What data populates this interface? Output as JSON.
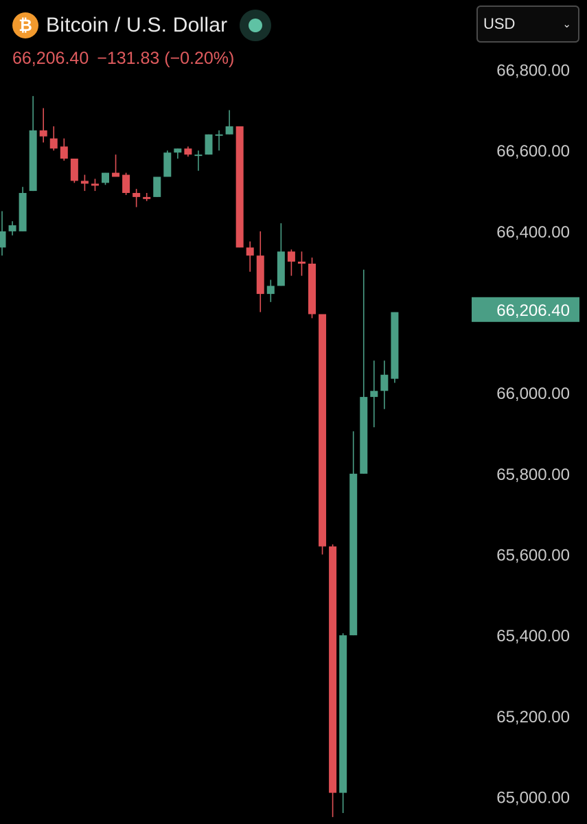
{
  "header": {
    "coin_icon_glyph": "₿",
    "title": "Bitcoin / U.S. Dollar",
    "price": "66,206.40",
    "change": "−131.83 (−0.20%)",
    "status_color": "#5fc2a4",
    "coin_color": "#f29a2e"
  },
  "currency_select": {
    "value": "USD",
    "icon": "chevron-down-icon"
  },
  "price_label": "66,206.40",
  "colors": {
    "up": "#4a9e85",
    "down": "#e05055",
    "last_price_bg": "#4a9e85"
  },
  "chart_data": {
    "type": "candlestick",
    "y_ticks": [
      "66,800.00",
      "66,600.00",
      "66,400.00",
      "66,200.00",
      "66,000.00",
      "65,800.00",
      "65,600.00",
      "65,400.00",
      "65,200.00",
      "65,000.00"
    ],
    "y_tick_values": [
      66800,
      66600,
      66400,
      66200,
      66000,
      65800,
      65600,
      65400,
      65200,
      65000
    ],
    "ylim": [
      64960,
      66920
    ],
    "last_price": 66206.4,
    "grid": false,
    "candles": [
      {
        "o": 66360,
        "h": 66450,
        "l": 66340,
        "c": 66400
      },
      {
        "o": 66400,
        "h": 66425,
        "l": 66390,
        "c": 66415
      },
      {
        "o": 66400,
        "h": 66510,
        "l": 66400,
        "c": 66495
      },
      {
        "o": 66500,
        "h": 66735,
        "l": 66500,
        "c": 66650
      },
      {
        "o": 66650,
        "h": 66705,
        "l": 66620,
        "c": 66635
      },
      {
        "o": 66630,
        "h": 66660,
        "l": 66600,
        "c": 66605
      },
      {
        "o": 66610,
        "h": 66630,
        "l": 66575,
        "c": 66580
      },
      {
        "o": 66580,
        "h": 66580,
        "l": 66520,
        "c": 66525
      },
      {
        "o": 66525,
        "h": 66540,
        "l": 66500,
        "c": 66518
      },
      {
        "o": 66518,
        "h": 66530,
        "l": 66500,
        "c": 66513
      },
      {
        "o": 66520,
        "h": 66545,
        "l": 66515,
        "c": 66545
      },
      {
        "o": 66545,
        "h": 66590,
        "l": 66535,
        "c": 66535
      },
      {
        "o": 66540,
        "h": 66545,
        "l": 66490,
        "c": 66495
      },
      {
        "o": 66495,
        "h": 66505,
        "l": 66460,
        "c": 66485
      },
      {
        "o": 66485,
        "h": 66495,
        "l": 66475,
        "c": 66480
      },
      {
        "o": 66485,
        "h": 66535,
        "l": 66485,
        "c": 66535
      },
      {
        "o": 66535,
        "h": 66600,
        "l": 66535,
        "c": 66595
      },
      {
        "o": 66595,
        "h": 66605,
        "l": 66580,
        "c": 66605
      },
      {
        "o": 66605,
        "h": 66610,
        "l": 66585,
        "c": 66590
      },
      {
        "o": 66590,
        "h": 66600,
        "l": 66550,
        "c": 66590
      },
      {
        "o": 66590,
        "h": 66640,
        "l": 66590,
        "c": 66640
      },
      {
        "o": 66640,
        "h": 66650,
        "l": 66600,
        "c": 66640
      },
      {
        "o": 66640,
        "h": 66700,
        "l": 66640,
        "c": 66660
      },
      {
        "o": 66660,
        "h": 66660,
        "l": 66360,
        "c": 66360
      },
      {
        "o": 66360,
        "h": 66375,
        "l": 66300,
        "c": 66340
      },
      {
        "o": 66340,
        "h": 66400,
        "l": 66200,
        "c": 66245
      },
      {
        "o": 66245,
        "h": 66280,
        "l": 66225,
        "c": 66265
      },
      {
        "o": 66265,
        "h": 66420,
        "l": 66265,
        "c": 66350
      },
      {
        "o": 66350,
        "h": 66355,
        "l": 66290,
        "c": 66325
      },
      {
        "o": 66325,
        "h": 66350,
        "l": 66290,
        "c": 66320
      },
      {
        "o": 66320,
        "h": 66335,
        "l": 66185,
        "c": 66195
      },
      {
        "o": 66195,
        "h": 66195,
        "l": 65600,
        "c": 65620
      },
      {
        "o": 65620,
        "h": 65625,
        "l": 64950,
        "c": 65010
      },
      {
        "o": 65010,
        "h": 65405,
        "l": 64960,
        "c": 65400
      },
      {
        "o": 65400,
        "h": 65905,
        "l": 65400,
        "c": 65800
      },
      {
        "o": 65800,
        "h": 66305,
        "l": 65800,
        "c": 65990
      },
      {
        "o": 65990,
        "h": 66080,
        "l": 65915,
        "c": 66005
      },
      {
        "o": 66005,
        "h": 66080,
        "l": 65960,
        "c": 66045
      },
      {
        "o": 66035,
        "h": 66200,
        "l": 66025,
        "c": 66200
      }
    ]
  }
}
